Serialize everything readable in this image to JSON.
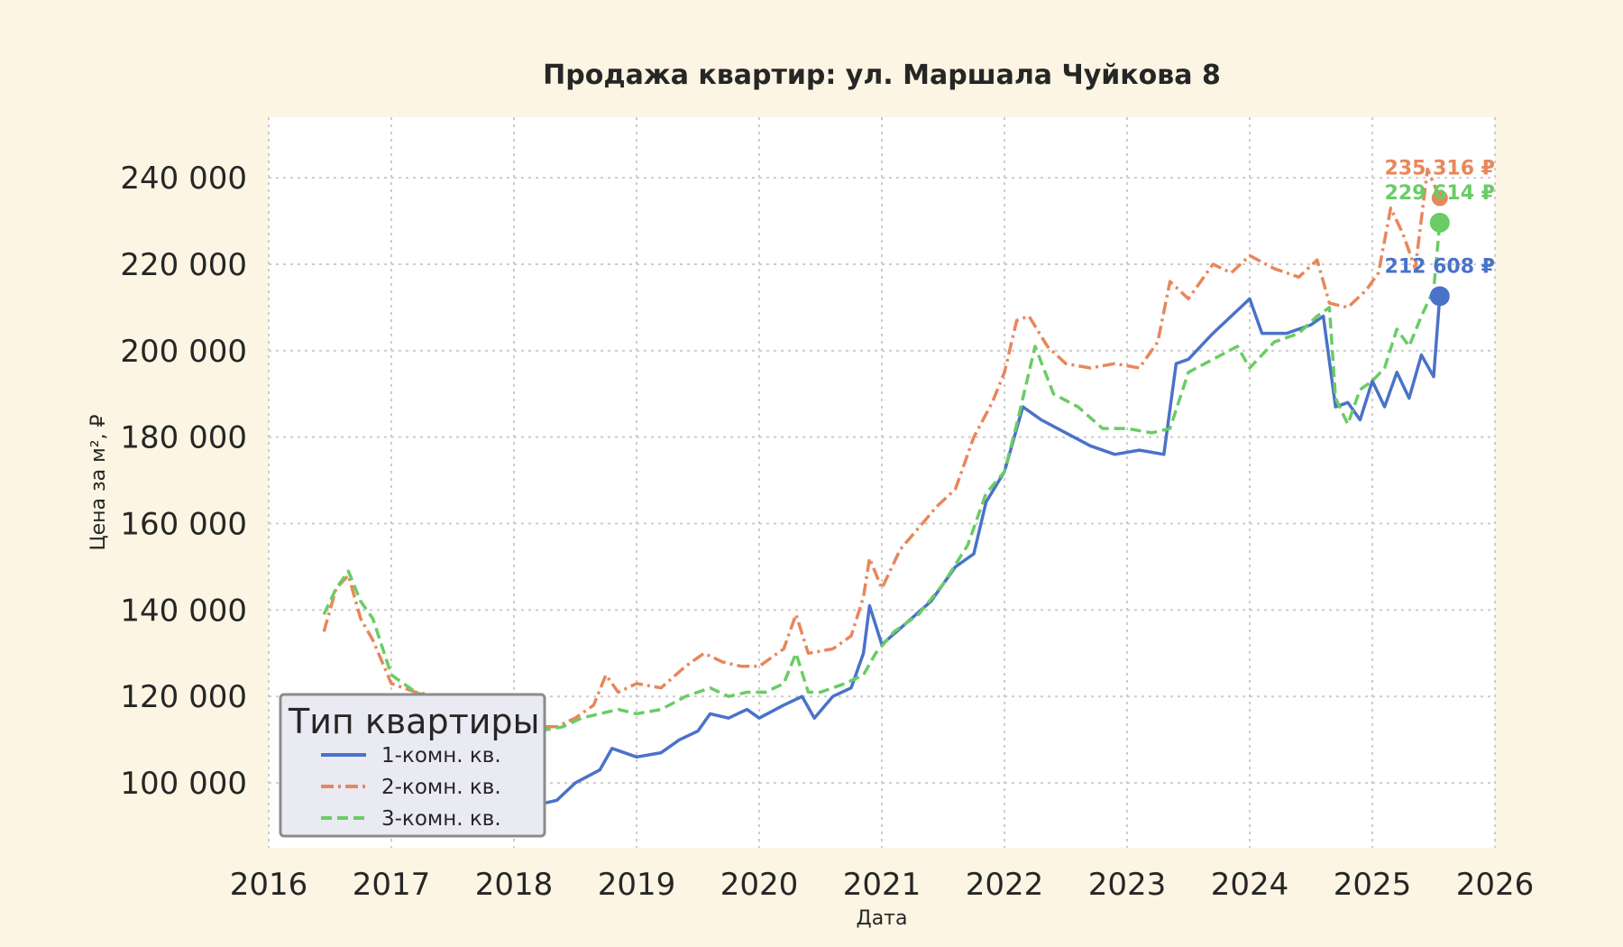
{
  "chart_data": {
    "type": "line",
    "title": "Продажа квартир: ул. Маршала Чуйкова 8",
    "xlabel": "Дата",
    "ylabel": "Цена за м², ₽",
    "xlim": [
      2016,
      2026
    ],
    "ylim": [
      85000,
      254000
    ],
    "x_ticks": [
      "2016",
      "2017",
      "2018",
      "2019",
      "2020",
      "2021",
      "2022",
      "2023",
      "2024",
      "2025",
      "2026"
    ],
    "y_ticks": [
      {
        "value": 100000,
        "label": "100 000"
      },
      {
        "value": 120000,
        "label": "120 000"
      },
      {
        "value": 140000,
        "label": "140 000"
      },
      {
        "value": 160000,
        "label": "160 000"
      },
      {
        "value": 180000,
        "label": "180 000"
      },
      {
        "value": 200000,
        "label": "200 000"
      },
      {
        "value": 220000,
        "label": "220 000"
      },
      {
        "value": 240000,
        "label": "240 000"
      }
    ],
    "grid": true,
    "legend": {
      "title": "Тип квартиры",
      "position": "lower-left"
    },
    "series": [
      {
        "name": "1-комн. кв.",
        "color": "#4a72c9",
        "dash": "solid",
        "last_label": "212 608 ₽",
        "last_value": 212608,
        "x": [
          2016.45,
          2016.6,
          2016.75,
          2016.9,
          2017.0,
          2017.2,
          2017.4,
          2017.6,
          2017.8,
          2018.0,
          2018.2,
          2018.35,
          2018.5,
          2018.7,
          2018.8,
          2019.0,
          2019.2,
          2019.35,
          2019.5,
          2019.6,
          2019.75,
          2019.9,
          2020.0,
          2020.2,
          2020.35,
          2020.45,
          2020.6,
          2020.75,
          2020.85,
          2020.9,
          2021.0,
          2021.2,
          2021.4,
          2021.6,
          2021.75,
          2021.85,
          2022.0,
          2022.15,
          2022.3,
          2022.5,
          2022.7,
          2022.9,
          2023.1,
          2023.3,
          2023.4,
          2023.5,
          2023.7,
          2023.85,
          2024.0,
          2024.1,
          2024.3,
          2024.5,
          2024.6,
          2024.7,
          2024.8,
          2024.9,
          2025.0,
          2025.1,
          2025.2,
          2025.3,
          2025.4,
          2025.5,
          2025.55
        ],
        "values": [
          110000,
          108000,
          106000,
          104000,
          105000,
          103000,
          101000,
          98000,
          96000,
          93000,
          95000,
          96000,
          100000,
          103000,
          108000,
          106000,
          107000,
          110000,
          112000,
          116000,
          115000,
          117000,
          115000,
          118000,
          120000,
          115000,
          120000,
          122000,
          130000,
          141000,
          132000,
          137000,
          142000,
          150000,
          153000,
          165000,
          172000,
          187000,
          184000,
          181000,
          178000,
          176000,
          177000,
          176000,
          197000,
          198000,
          204000,
          208000,
          212000,
          204000,
          204000,
          206000,
          208000,
          187000,
          188000,
          184000,
          193000,
          187000,
          195000,
          189000,
          199000,
          194000,
          212608
        ]
      },
      {
        "name": "2-комн. кв.",
        "color": "#e8875b",
        "dash": "dashdot",
        "last_label": "235 316 ₽",
        "last_value": 235316,
        "x": [
          2016.45,
          2016.55,
          2016.65,
          2016.75,
          2016.85,
          2017.0,
          2017.2,
          2017.4,
          2017.6,
          2017.8,
          2018.0,
          2018.2,
          2018.35,
          2018.5,
          2018.65,
          2018.75,
          2018.85,
          2019.0,
          2019.2,
          2019.4,
          2019.55,
          2019.7,
          2019.85,
          2020.0,
          2020.2,
          2020.3,
          2020.4,
          2020.6,
          2020.75,
          2020.85,
          2020.9,
          2021.0,
          2021.15,
          2021.3,
          2021.45,
          2021.6,
          2021.75,
          2021.9,
          2022.0,
          2022.1,
          2022.2,
          2022.35,
          2022.5,
          2022.7,
          2022.9,
          2023.1,
          2023.25,
          2023.35,
          2023.5,
          2023.7,
          2023.85,
          2024.0,
          2024.2,
          2024.4,
          2024.55,
          2024.65,
          2024.8,
          2024.95,
          2025.05,
          2025.15,
          2025.25,
          2025.35,
          2025.45,
          2025.55
        ],
        "values": [
          135000,
          145000,
          148000,
          138000,
          133000,
          123000,
          121000,
          120000,
          118000,
          116000,
          114000,
          113000,
          113000,
          115000,
          118000,
          125000,
          121000,
          123000,
          122000,
          127000,
          130000,
          128000,
          127000,
          127000,
          131000,
          139000,
          130000,
          131000,
          134000,
          143000,
          152000,
          145000,
          154000,
          159000,
          164000,
          168000,
          180000,
          188000,
          195000,
          207000,
          208000,
          201000,
          197000,
          196000,
          197000,
          196000,
          202000,
          216000,
          212000,
          220000,
          218000,
          222000,
          219000,
          217000,
          221000,
          211000,
          210000,
          214000,
          218000,
          233000,
          227000,
          219000,
          242000,
          235316
        ]
      },
      {
        "name": "3-комн. кв.",
        "color": "#6acc65",
        "dash": "dashed",
        "last_label": "229 614 ₽",
        "last_value": 229614,
        "x": [
          2016.45,
          2016.55,
          2016.65,
          2016.75,
          2016.85,
          2017.0,
          2017.2,
          2017.4,
          2017.6,
          2017.8,
          2018.0,
          2018.2,
          2018.4,
          2018.55,
          2018.7,
          2018.85,
          2019.0,
          2019.2,
          2019.4,
          2019.6,
          2019.75,
          2019.9,
          2020.05,
          2020.2,
          2020.3,
          2020.4,
          2020.5,
          2020.7,
          2020.85,
          2020.95,
          2021.1,
          2021.3,
          2021.5,
          2021.7,
          2021.85,
          2022.0,
          2022.1,
          2022.25,
          2022.4,
          2022.6,
          2022.8,
          2023.0,
          2023.2,
          2023.35,
          2023.5,
          2023.7,
          2023.9,
          2024.0,
          2024.2,
          2024.4,
          2024.55,
          2024.65,
          2024.7,
          2024.8,
          2024.9,
          2025.0,
          2025.1,
          2025.2,
          2025.3,
          2025.4,
          2025.5,
          2025.55
        ],
        "values": [
          139000,
          145000,
          149000,
          142000,
          138000,
          125000,
          121000,
          119000,
          117000,
          115000,
          112000,
          112000,
          113000,
          115000,
          116000,
          117000,
          116000,
          117000,
          120000,
          122000,
          120000,
          121000,
          121000,
          123000,
          130000,
          121000,
          121000,
          123000,
          125000,
          130000,
          135000,
          139000,
          146000,
          155000,
          167000,
          172000,
          183000,
          201000,
          190000,
          187000,
          182000,
          182000,
          181000,
          182000,
          195000,
          198000,
          201000,
          196000,
          202000,
          204000,
          208000,
          210000,
          189000,
          183000,
          191000,
          193000,
          196000,
          205000,
          201000,
          208000,
          214000,
          229614
        ]
      }
    ]
  }
}
